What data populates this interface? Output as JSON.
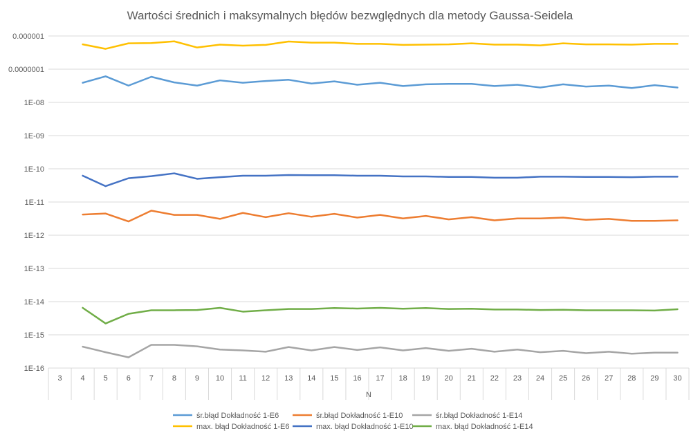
{
  "chart_data": {
    "type": "line",
    "title": "Wartości średnich i maksymalnych błędów bezwględnych dla metody Gaussa-Seidela",
    "xlabel": "N",
    "ylabel": "",
    "yscale": "log",
    "ylim": [
      1e-16,
      1e-06
    ],
    "yticks": [
      {
        "value": 1e-06,
        "label": "0.000001"
      },
      {
        "value": 1e-07,
        "label": "0.0000001"
      },
      {
        "value": 1e-08,
        "label": "1E-08"
      },
      {
        "value": 1e-09,
        "label": "1E-09"
      },
      {
        "value": 1e-10,
        "label": "1E-10"
      },
      {
        "value": 1e-11,
        "label": "1E-11"
      },
      {
        "value": 1e-12,
        "label": "1E-12"
      },
      {
        "value": 1e-13,
        "label": "1E-13"
      },
      {
        "value": 1e-14,
        "label": "1E-14"
      },
      {
        "value": 1e-15,
        "label": "1E-15"
      },
      {
        "value": 1e-16,
        "label": "1E-16"
      }
    ],
    "categories": [
      "3",
      "4",
      "5",
      "6",
      "7",
      "8",
      "9",
      "10",
      "11",
      "12",
      "13",
      "14",
      "15",
      "16",
      "17",
      "18",
      "19",
      "20",
      "21",
      "22",
      "23",
      "24",
      "25",
      "26",
      "27",
      "28",
      "29",
      "30"
    ],
    "grid": "horizontal",
    "legend_position": "bottom",
    "series": [
      {
        "name": "śr.błąd Dokładność 1-E6",
        "color": "#5b9bd5",
        "values": [
          null,
          3.9e-08,
          6.1e-08,
          3.2e-08,
          5.9e-08,
          4e-08,
          3.2e-08,
          4.6e-08,
          3.9e-08,
          4.4e-08,
          4.8e-08,
          3.7e-08,
          4.3e-08,
          3.4e-08,
          3.9e-08,
          3.1e-08,
          3.5e-08,
          3.6e-08,
          3.6e-08,
          3.1e-08,
          3.4e-08,
          2.8e-08,
          3.5e-08,
          3e-08,
          3.2e-08,
          2.7e-08,
          3.3e-08,
          2.8e-08
        ]
      },
      {
        "name": "śr.błąd Dokładność 1-E10",
        "color": "#ed7d31",
        "values": [
          null,
          4.2e-12,
          4.5e-12,
          2.6e-12,
          5.5e-12,
          4.1e-12,
          4.1e-12,
          3.1e-12,
          4.7e-12,
          3.5e-12,
          4.6e-12,
          3.6e-12,
          4.4e-12,
          3.4e-12,
          4.1e-12,
          3.2e-12,
          3.8e-12,
          3e-12,
          3.5e-12,
          2.8e-12,
          3.2e-12,
          3.2e-12,
          3.4e-12,
          2.9e-12,
          3.1e-12,
          2.7e-12,
          2.7e-12,
          2.8e-12
        ]
      },
      {
        "name": "śr.błąd Dokładność 1-E14",
        "color": "#a5a5a5",
        "values": [
          null,
          4.4e-16,
          3e-16,
          2.1e-16,
          5e-16,
          5e-16,
          4.5e-16,
          3.6e-16,
          3.4e-16,
          3.1e-16,
          4.3e-16,
          3.4e-16,
          4.3e-16,
          3.5e-16,
          4.2e-16,
          3.4e-16,
          4e-16,
          3.3e-16,
          3.8e-16,
          3.1e-16,
          3.6e-16,
          3e-16,
          3.3e-16,
          2.8e-16,
          3.1e-16,
          2.7e-16,
          2.9e-16,
          2.9e-16
        ]
      },
      {
        "name": "max. błąd Dokładność 1-E6",
        "color": "#ffc000",
        "values": [
          null,
          5.6e-07,
          4.1e-07,
          6e-07,
          6.1e-07,
          6.9e-07,
          4.5e-07,
          5.5e-07,
          5.1e-07,
          5.4e-07,
          6.8e-07,
          6.3e-07,
          6.3e-07,
          5.8e-07,
          5.8e-07,
          5.4e-07,
          5.5e-07,
          5.6e-07,
          6e-07,
          5.5e-07,
          5.5e-07,
          5.2e-07,
          6e-07,
          5.6e-07,
          5.6e-07,
          5.5e-07,
          5.8e-07,
          5.8e-07
        ]
      },
      {
        "name": "max. błąd Dokładność 1-E10",
        "color": "#4472c4",
        "values": [
          null,
          6.2e-11,
          3e-11,
          5.2e-11,
          6e-11,
          7.3e-11,
          5e-11,
          5.6e-11,
          6.2e-11,
          6.2e-11,
          6.5e-11,
          6.4e-11,
          6.4e-11,
          6.2e-11,
          6.2e-11,
          5.9e-11,
          5.9e-11,
          5.7e-11,
          5.7e-11,
          5.4e-11,
          5.4e-11,
          5.8e-11,
          5.8e-11,
          5.7e-11,
          5.7e-11,
          5.6e-11,
          5.8e-11,
          5.8e-11
        ]
      },
      {
        "name": "max. błąd Dokładność 1-E14",
        "color": "#70ad47",
        "values": [
          null,
          6.5e-15,
          2.2e-15,
          4.3e-15,
          5.5e-15,
          5.5e-15,
          5.6e-15,
          6.5e-15,
          5e-15,
          5.5e-15,
          6e-15,
          6e-15,
          6.4e-15,
          6.2e-15,
          6.5e-15,
          6.1e-15,
          6.4e-15,
          6e-15,
          6.1e-15,
          5.8e-15,
          5.8e-15,
          5.6e-15,
          5.7e-15,
          5.5e-15,
          5.5e-15,
          5.5e-15,
          5.4e-15,
          5.9e-15
        ]
      }
    ]
  }
}
